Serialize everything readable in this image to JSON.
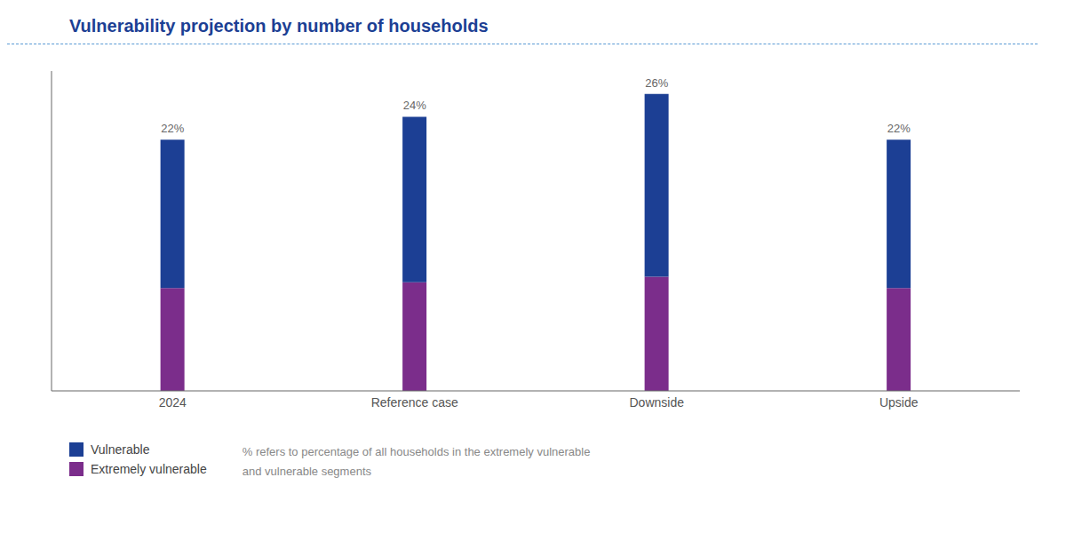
{
  "chart_data": {
    "type": "bar",
    "title": "Vulnerability projection by number of households",
    "categories": [
      "2024",
      "Reference case",
      "Downside",
      "Upside"
    ],
    "series": [
      {
        "name": "Extremely vulnerable",
        "color": "#7B2D8B",
        "values": [
          9,
          9.5,
          10,
          9
        ]
      },
      {
        "name": "Vulnerable",
        "color": "#1C3F94",
        "values": [
          13,
          14.5,
          16,
          13
        ]
      }
    ],
    "stacked": true,
    "ylim": [
      0,
      28
    ],
    "tick_labels": "x",
    "grid": false,
    "legend": "lower left",
    "annotations": {
      "values": [
        22,
        24,
        26,
        22
      ],
      "value_labels": [
        "22%",
        "24%",
        "26%",
        "22%"
      ]
    },
    "notes": [
      "% refers to percentage of all households in the extremely vulnerable",
      "and vulnerable segments"
    ]
  }
}
